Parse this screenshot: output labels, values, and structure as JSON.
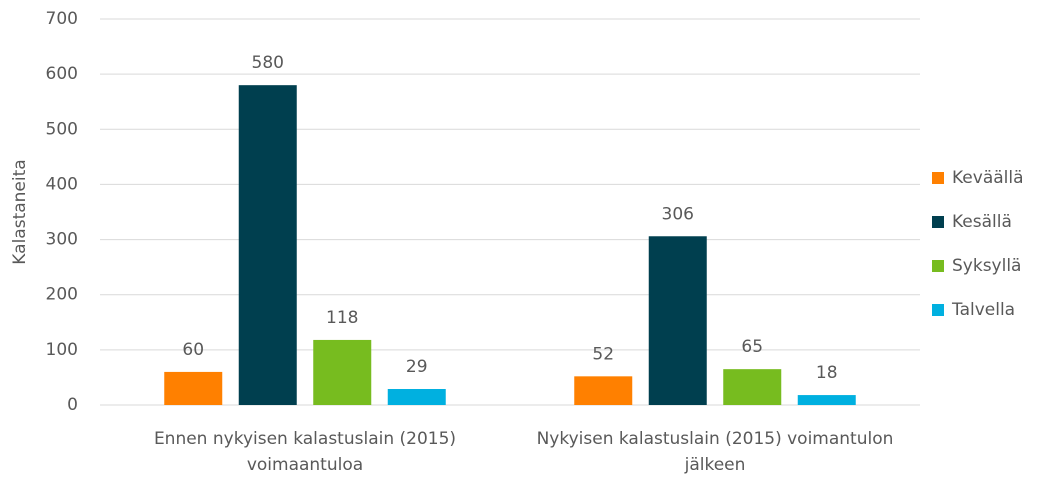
{
  "chart_data": {
    "type": "bar",
    "y_label": "Kalastaneita",
    "categories": [
      "Ennen nykyisen kalastuslain (2015) voimaantuloa",
      "Nykyisen kalastuslain (2015) voimantulon jälkeen"
    ],
    "series": [
      {
        "name": "Keväällä",
        "color": "#ff8000",
        "values": [
          60,
          52
        ]
      },
      {
        "name": "Kesällä",
        "color": "#003f4f",
        "values": [
          580,
          306
        ]
      },
      {
        "name": "Syksyllä",
        "color": "#77bc1f",
        "values": [
          118,
          65
        ]
      },
      {
        "name": "Talvella",
        "color": "#00b0e0",
        "values": [
          29,
          18
        ]
      }
    ],
    "ylim": [
      0,
      700
    ],
    "yticks": [
      0,
      100,
      200,
      300,
      400,
      500,
      600,
      700
    ],
    "grid": true,
    "legend": "right"
  }
}
